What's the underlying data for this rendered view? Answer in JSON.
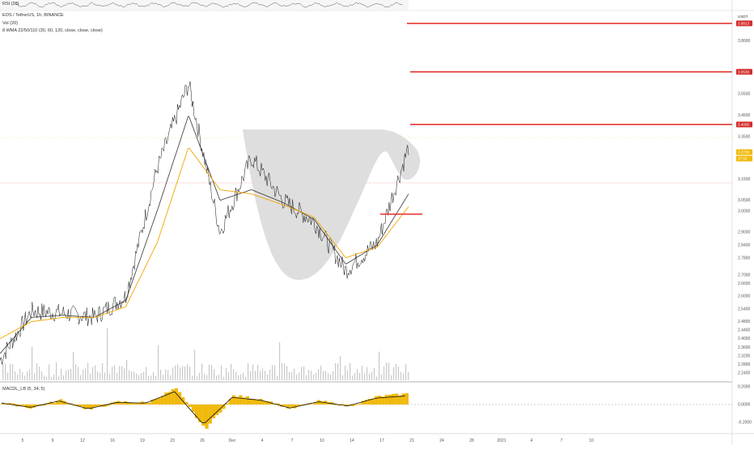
{
  "header": {
    "top_indicator": "RSI (38)",
    "symbol": "EOS / TetherUS, 1h, BINANCE",
    "vol": "Vol (20)",
    "wma": "8 WMA 22/50/110 (30, 60, 120, close, close, close)",
    "macd": "MACDL_LB (5, 34, 5)",
    "currency": "USDT"
  },
  "price_axis": {
    "ticks": [
      "3.8000",
      "3.6500",
      "3.5500",
      "3.4500",
      "3.3500",
      "3.1500",
      "3.0500",
      "3.0000",
      "2.9000",
      "2.8400",
      "2.7800",
      "2.7000",
      "2.6600",
      "2.6000",
      "2.5400",
      "2.4800",
      "2.4400",
      "2.4000",
      "2.3600",
      "2.3200",
      "2.2800",
      "2.2400"
    ],
    "badges": [
      {
        "text": "3.8813",
        "color": "#d32f2f"
      },
      {
        "text": "3.6538",
        "color": "#d32f2f"
      },
      {
        "text": "3.4065",
        "color": "#d32f2f"
      },
      {
        "text": "3.2768",
        "color": "#f0b90b"
      },
      {
        "text": "37:55",
        "color": "#f0b90b"
      }
    ]
  },
  "macd_axis": {
    "ticks": [
      "0.2000",
      "0.0000",
      "-0.2000"
    ]
  },
  "time_axis": {
    "ticks": [
      "5",
      "9",
      "12",
      "16",
      "19",
      "23",
      "26",
      "Dec",
      "4",
      "7",
      "10",
      "14",
      "17",
      "21",
      "24",
      "28",
      "2021",
      "4",
      "7",
      "10"
    ]
  },
  "chart_data": {
    "type": "line",
    "description": "EOS/USDT 1h candlestick-style price line with moving averages, volume and MACD",
    "x": [
      "5",
      "9",
      "12",
      "16",
      "19",
      "23",
      "26",
      "Dec",
      "4",
      "7",
      "10",
      "14",
      "17",
      "21"
    ],
    "series": [
      {
        "values": [
          2.3,
          2.53,
          2.52,
          2.5,
          2.6,
          3.2,
          3.6,
          2.9,
          3.25,
          3.05,
          2.95,
          2.72,
          2.85,
          3.3
        ]
      },
      {
        "values": [
          2.33,
          2.5,
          2.51,
          2.5,
          2.58,
          3.0,
          3.45,
          3.05,
          3.1,
          3.04,
          2.96,
          2.75,
          2.84,
          3.08
        ]
      },
      {
        "values": [
          2.4,
          2.48,
          2.5,
          2.5,
          2.55,
          2.85,
          3.3,
          3.1,
          3.08,
          3.03,
          2.97,
          2.78,
          2.83,
          3.02
        ]
      }
    ],
    "horizontal_levels": [
      3.8813,
      3.6538,
      3.4065,
      2.985
    ],
    "yrange": [
      2.22,
      3.9
    ],
    "macd": [
      0.02,
      -0.04,
      0.05,
      -0.06,
      0.03,
      0.02,
      0.18,
      -0.28,
      0.1,
      0.06,
      -0.05,
      0.04,
      -0.02,
      0.09,
      0.12
    ]
  }
}
